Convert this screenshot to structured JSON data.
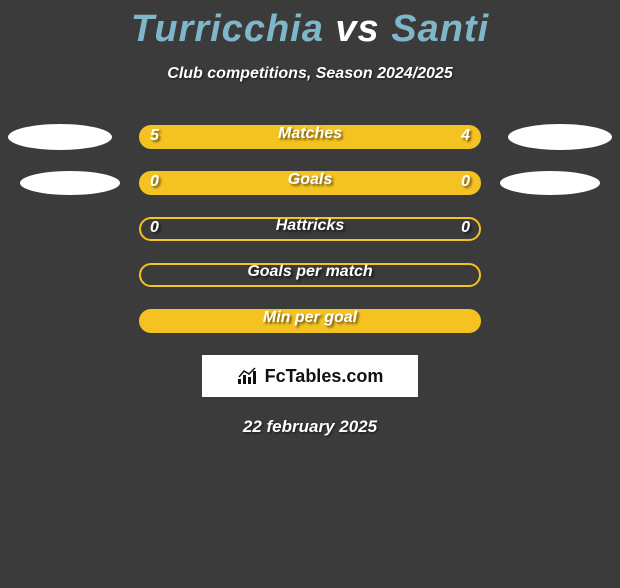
{
  "headline": {
    "player_a": "Turricchia",
    "vs": "vs",
    "player_b": "Santi",
    "color_players": "#7fb6c9",
    "color_vs": "#ffffff"
  },
  "subheadline": "Club competitions, Season 2024/2025",
  "rows": [
    {
      "label": "Matches",
      "left": "5",
      "right": "4",
      "filled": true,
      "show_vals": true,
      "ellipse_left": "l1",
      "ellipse_right": "r1"
    },
    {
      "label": "Goals",
      "left": "0",
      "right": "0",
      "filled": true,
      "show_vals": true,
      "ellipse_left": "l2",
      "ellipse_right": "r2"
    },
    {
      "label": "Hattricks",
      "left": "0",
      "right": "0",
      "filled": false,
      "show_vals": true,
      "ellipse_left": null,
      "ellipse_right": null
    },
    {
      "label": "Goals per match",
      "left": "",
      "right": "",
      "filled": false,
      "show_vals": false,
      "ellipse_left": null,
      "ellipse_right": null
    },
    {
      "label": "Min per goal",
      "left": "",
      "right": "",
      "filled": true,
      "show_vals": false,
      "ellipse_left": null,
      "ellipse_right": null
    }
  ],
  "logo": {
    "text": "FcTables.com"
  },
  "date": "22 february 2025",
  "colors": {
    "background": "#3b3b3b",
    "pill_border": "#f4c221",
    "pill_fill": "#f4c221",
    "text": "#ffffff",
    "ellipse": "#ffffff"
  }
}
